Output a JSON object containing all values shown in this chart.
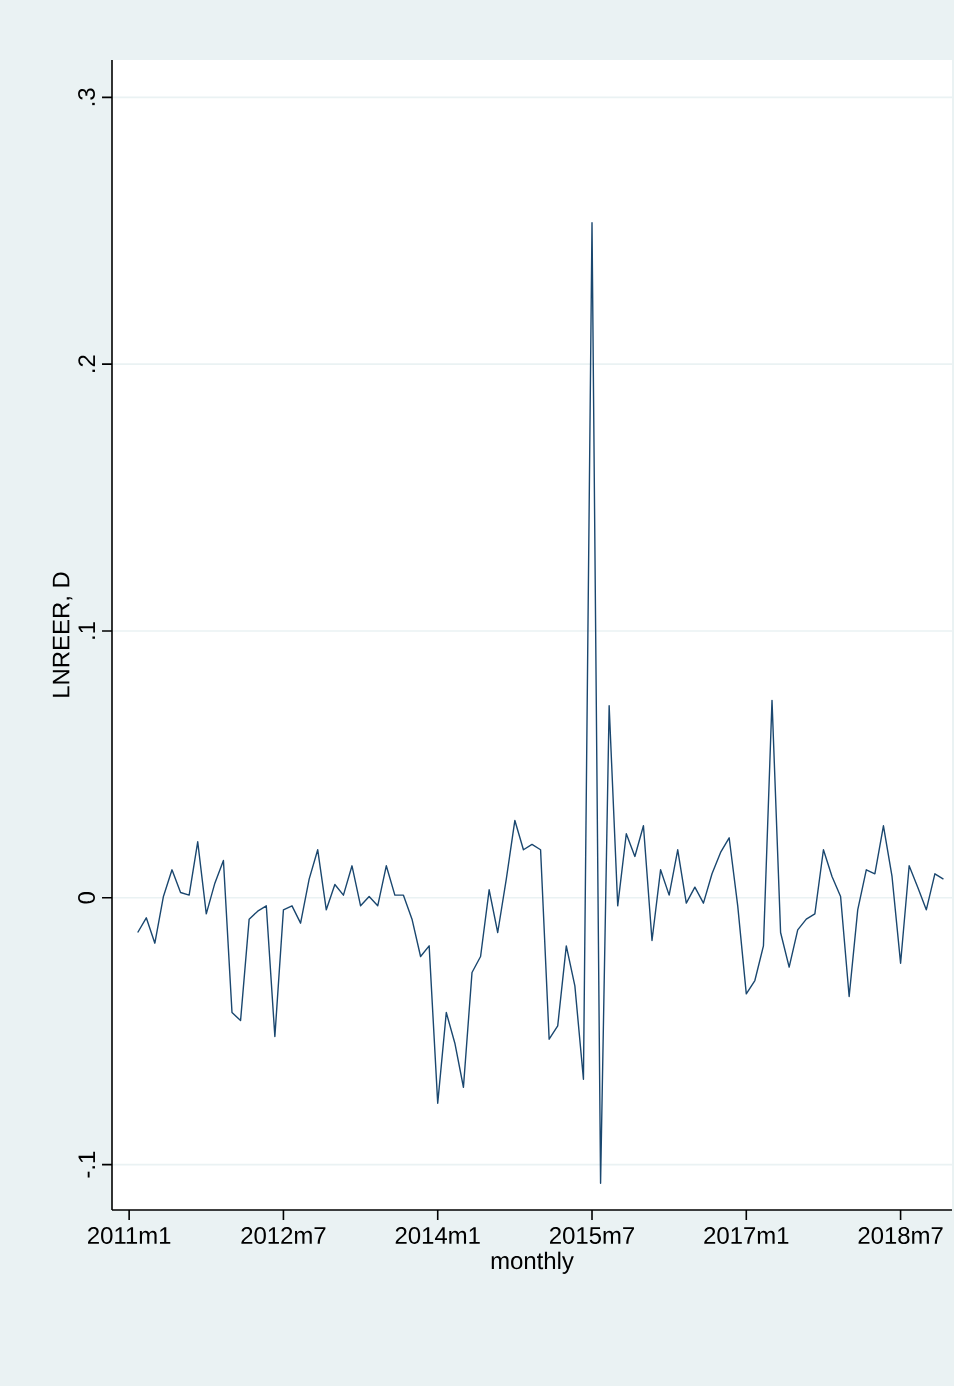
{
  "chart_data": {
    "type": "line",
    "xlabel": "monthly",
    "ylabel": "LNREER, D",
    "x": [
      "2011-02",
      "2011-03",
      "2011-04",
      "2011-05",
      "2011-06",
      "2011-07",
      "2011-08",
      "2011-09",
      "2011-10",
      "2011-11",
      "2011-12",
      "2012-01",
      "2012-02",
      "2012-03",
      "2012-04",
      "2012-05",
      "2012-06",
      "2012-07",
      "2012-08",
      "2012-09",
      "2012-10",
      "2012-11",
      "2012-12",
      "2013-01",
      "2013-02",
      "2013-03",
      "2013-04",
      "2013-05",
      "2013-06",
      "2013-07",
      "2013-08",
      "2013-09",
      "2013-10",
      "2013-11",
      "2013-12",
      "2014-01",
      "2014-02",
      "2014-03",
      "2014-04",
      "2014-05",
      "2014-06",
      "2014-07",
      "2014-08",
      "2014-09",
      "2014-10",
      "2014-11",
      "2014-12",
      "2015-01",
      "2015-02",
      "2015-03",
      "2015-04",
      "2015-05",
      "2015-06",
      "2015-07",
      "2015-08",
      "2015-09",
      "2015-10",
      "2015-11",
      "2015-12",
      "2016-01",
      "2016-02",
      "2016-03",
      "2016-04",
      "2016-05",
      "2016-06",
      "2016-07",
      "2016-08",
      "2016-09",
      "2016-10",
      "2016-11",
      "2016-12",
      "2017-01",
      "2017-02",
      "2017-03",
      "2017-04",
      "2017-05",
      "2017-06",
      "2017-07",
      "2017-08",
      "2017-09",
      "2017-10",
      "2017-11",
      "2017-12",
      "2018-01",
      "2018-02",
      "2018-03",
      "2018-04",
      "2018-05",
      "2018-06",
      "2018-07",
      "2018-08",
      "2018-09",
      "2018-10",
      "2018-11",
      "2018-12"
    ],
    "series": [
      {
        "color": "#1a476f",
        "values": [
          -0.013,
          -0.0075,
          -0.017,
          0.0005,
          0.0105,
          0.002,
          0.001,
          0.021,
          -0.006,
          0.0055,
          0.014,
          -0.043,
          -0.046,
          -0.008,
          -0.005,
          -0.003,
          -0.052,
          -0.0045,
          -0.003,
          -0.0095,
          0.007,
          0.018,
          -0.0045,
          0.005,
          0.001,
          0.012,
          -0.003,
          0.0005,
          -0.003,
          0.012,
          0.001,
          0.001,
          -0.008,
          -0.022,
          -0.018,
          -0.077,
          -0.043,
          -0.0545,
          -0.071,
          -0.028,
          -0.022,
          0.003,
          -0.013,
          0.007,
          0.029,
          0.018,
          0.02,
          0.018,
          -0.053,
          -0.048,
          -0.018,
          -0.033,
          -0.068,
          0.253,
          -0.107,
          0.072,
          -0.003,
          0.024,
          0.0155,
          0.027,
          -0.016,
          0.0105,
          0.001,
          0.018,
          -0.002,
          0.004,
          -0.002,
          0.009,
          0.017,
          0.0225,
          -0.003,
          -0.036,
          -0.031,
          -0.018,
          0.074,
          -0.013,
          -0.026,
          -0.012,
          -0.008,
          -0.006,
          0.018,
          0.008,
          0.0005,
          -0.037,
          -0.0045,
          0.0105,
          0.009,
          0.027,
          0.008,
          -0.0245,
          0.012,
          0.004,
          -0.0045,
          0.009,
          0.007
        ]
      }
    ],
    "xlim": [
      "2010-11",
      "2019-01"
    ],
    "xticks": [
      {
        "value": "2011-01",
        "label": "2011m1"
      },
      {
        "value": "2012-07",
        "label": "2012m7"
      },
      {
        "value": "2014-01",
        "label": "2014m1"
      },
      {
        "value": "2015-07",
        "label": "2015m7"
      },
      {
        "value": "2017-01",
        "label": "2017m1"
      },
      {
        "value": "2018-07",
        "label": "2018m7"
      }
    ],
    "ylim": [
      -0.117,
      0.314
    ],
    "yticks": [
      {
        "value": -0.1,
        "label": "-.1"
      },
      {
        "value": 0,
        "label": "0"
      },
      {
        "value": 0.1,
        "label": ".1"
      },
      {
        "value": 0.2,
        "label": ".2"
      },
      {
        "value": 0.3,
        "label": ".3"
      }
    ],
    "grid": "y",
    "marker": "none",
    "line_style": "solid"
  }
}
